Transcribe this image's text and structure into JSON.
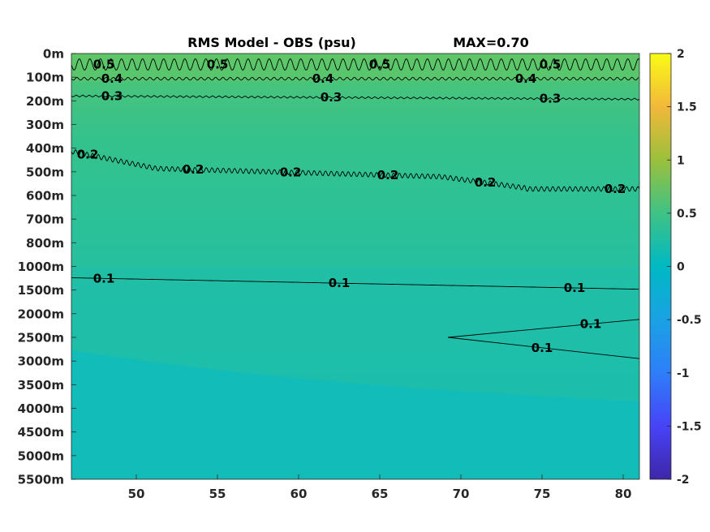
{
  "chart_data": {
    "type": "heatmap",
    "title": "RMS Model - OBS (psu)",
    "max_label": "MAX=0.70",
    "x_ticks": [
      50,
      55,
      60,
      65,
      70,
      75,
      80
    ],
    "xlim": [
      46,
      81
    ],
    "y_ticks": [
      "0m",
      "100m",
      "200m",
      "300m",
      "400m",
      "500m",
      "600m",
      "700m",
      "800m",
      "1000m",
      "1500m",
      "2000m",
      "2500m",
      "3000m",
      "3500m",
      "4000m",
      "4500m",
      "5000m",
      "5500m"
    ],
    "colorbar": {
      "colormap": "parula",
      "range": [
        -2,
        2
      ],
      "ticks": [
        "2",
        "1.5",
        "1",
        "0.5",
        "0",
        "-0.5",
        "-1",
        "-1.5",
        "-2"
      ]
    },
    "contours": [
      {
        "level": "0.5",
        "depth": "0-100m",
        "label_x": [
          48,
          55,
          65,
          75.5
        ]
      },
      {
        "level": "0.4",
        "depth": "100m",
        "label_x": [
          48.5,
          61.5,
          74
        ]
      },
      {
        "level": "0.3",
        "depth": "200m",
        "label_x": [
          48.5,
          62,
          75.5
        ]
      },
      {
        "level": "0.2",
        "depth": "400-600m",
        "label_x": [
          47,
          53.5,
          59.5,
          65.5,
          71.5,
          79.5
        ]
      },
      {
        "level": "0.1",
        "depth": "1000-1500m",
        "label_x": [
          48,
          62.5,
          77
        ]
      },
      {
        "level": "0.1",
        "depth": "2000-3000m",
        "label_x": [
          78,
          75
        ]
      }
    ]
  }
}
